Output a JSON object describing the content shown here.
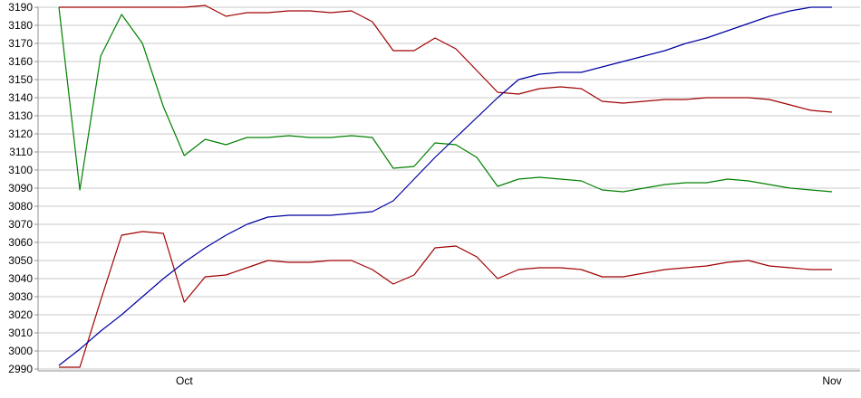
{
  "chart_data": {
    "type": "line",
    "title": "",
    "xlabel": "",
    "ylabel": "",
    "ylim": [
      2990,
      3190
    ],
    "grid": true,
    "legend": "none",
    "y_ticks": [
      2990,
      3000,
      3010,
      3020,
      3030,
      3040,
      3050,
      3060,
      3070,
      3080,
      3090,
      3100,
      3110,
      3120,
      3130,
      3140,
      3150,
      3160,
      3170,
      3180,
      3190
    ],
    "x_tick_labels": [
      {
        "label": "Oct",
        "index": 6
      },
      {
        "label": "Nov",
        "index": 37
      }
    ],
    "series": [
      {
        "name": "upper-band-line",
        "color": "#a00000",
        "values": [
          3190,
          3190,
          3190,
          3190,
          3190,
          3190,
          3190,
          3191,
          3185,
          3187,
          3187,
          3188,
          3188,
          3187,
          3188,
          3182,
          3166,
          3166,
          3173,
          3167,
          3155,
          3143,
          3142,
          3145,
          3146,
          3145,
          3138,
          3137,
          3138,
          3139,
          3139,
          3140,
          3140,
          3140,
          3139,
          3136,
          3133,
          3132
        ]
      },
      {
        "name": "green-line",
        "color": "#008000",
        "values": [
          3190,
          3089,
          3163,
          3186,
          3170,
          3135,
          3108,
          3117,
          3114,
          3118,
          3118,
          3119,
          3118,
          3118,
          3119,
          3118,
          3101,
          3102,
          3115,
          3114,
          3107,
          3091,
          3095,
          3096,
          3095,
          3094,
          3089,
          3088,
          3090,
          3092,
          3093,
          3093,
          3095,
          3094,
          3092,
          3090,
          3089,
          3088
        ]
      },
      {
        "name": "blue-line",
        "color": "#0000a0",
        "values": [
          2992,
          3001,
          3011,
          3020,
          3030,
          3040,
          3049,
          3057,
          3064,
          3070,
          3074,
          3075,
          3075,
          3075,
          3076,
          3077,
          3083,
          3095,
          3107,
          3118,
          3129,
          3140,
          3150,
          3153,
          3154,
          3154,
          3157,
          3160,
          3163,
          3166,
          3170,
          3173,
          3177,
          3181,
          3185,
          3188,
          3190,
          3190
        ]
      },
      {
        "name": "lower-band-line",
        "color": "#a00000",
        "values": [
          2991,
          2991,
          3028,
          3064,
          3066,
          3065,
          3027,
          3041,
          3042,
          3046,
          3050,
          3049,
          3049,
          3050,
          3050,
          3045,
          3037,
          3042,
          3057,
          3058,
          3052,
          3040,
          3045,
          3046,
          3046,
          3045,
          3041,
          3041,
          3043,
          3045,
          3046,
          3047,
          3049,
          3050,
          3047,
          3046,
          3045,
          3045
        ]
      }
    ]
  },
  "colors": {
    "background": "#ffffff",
    "gridline": "#c8c8c8",
    "axis": "#909090",
    "tick": "#909090",
    "label_text": "#000000"
  }
}
